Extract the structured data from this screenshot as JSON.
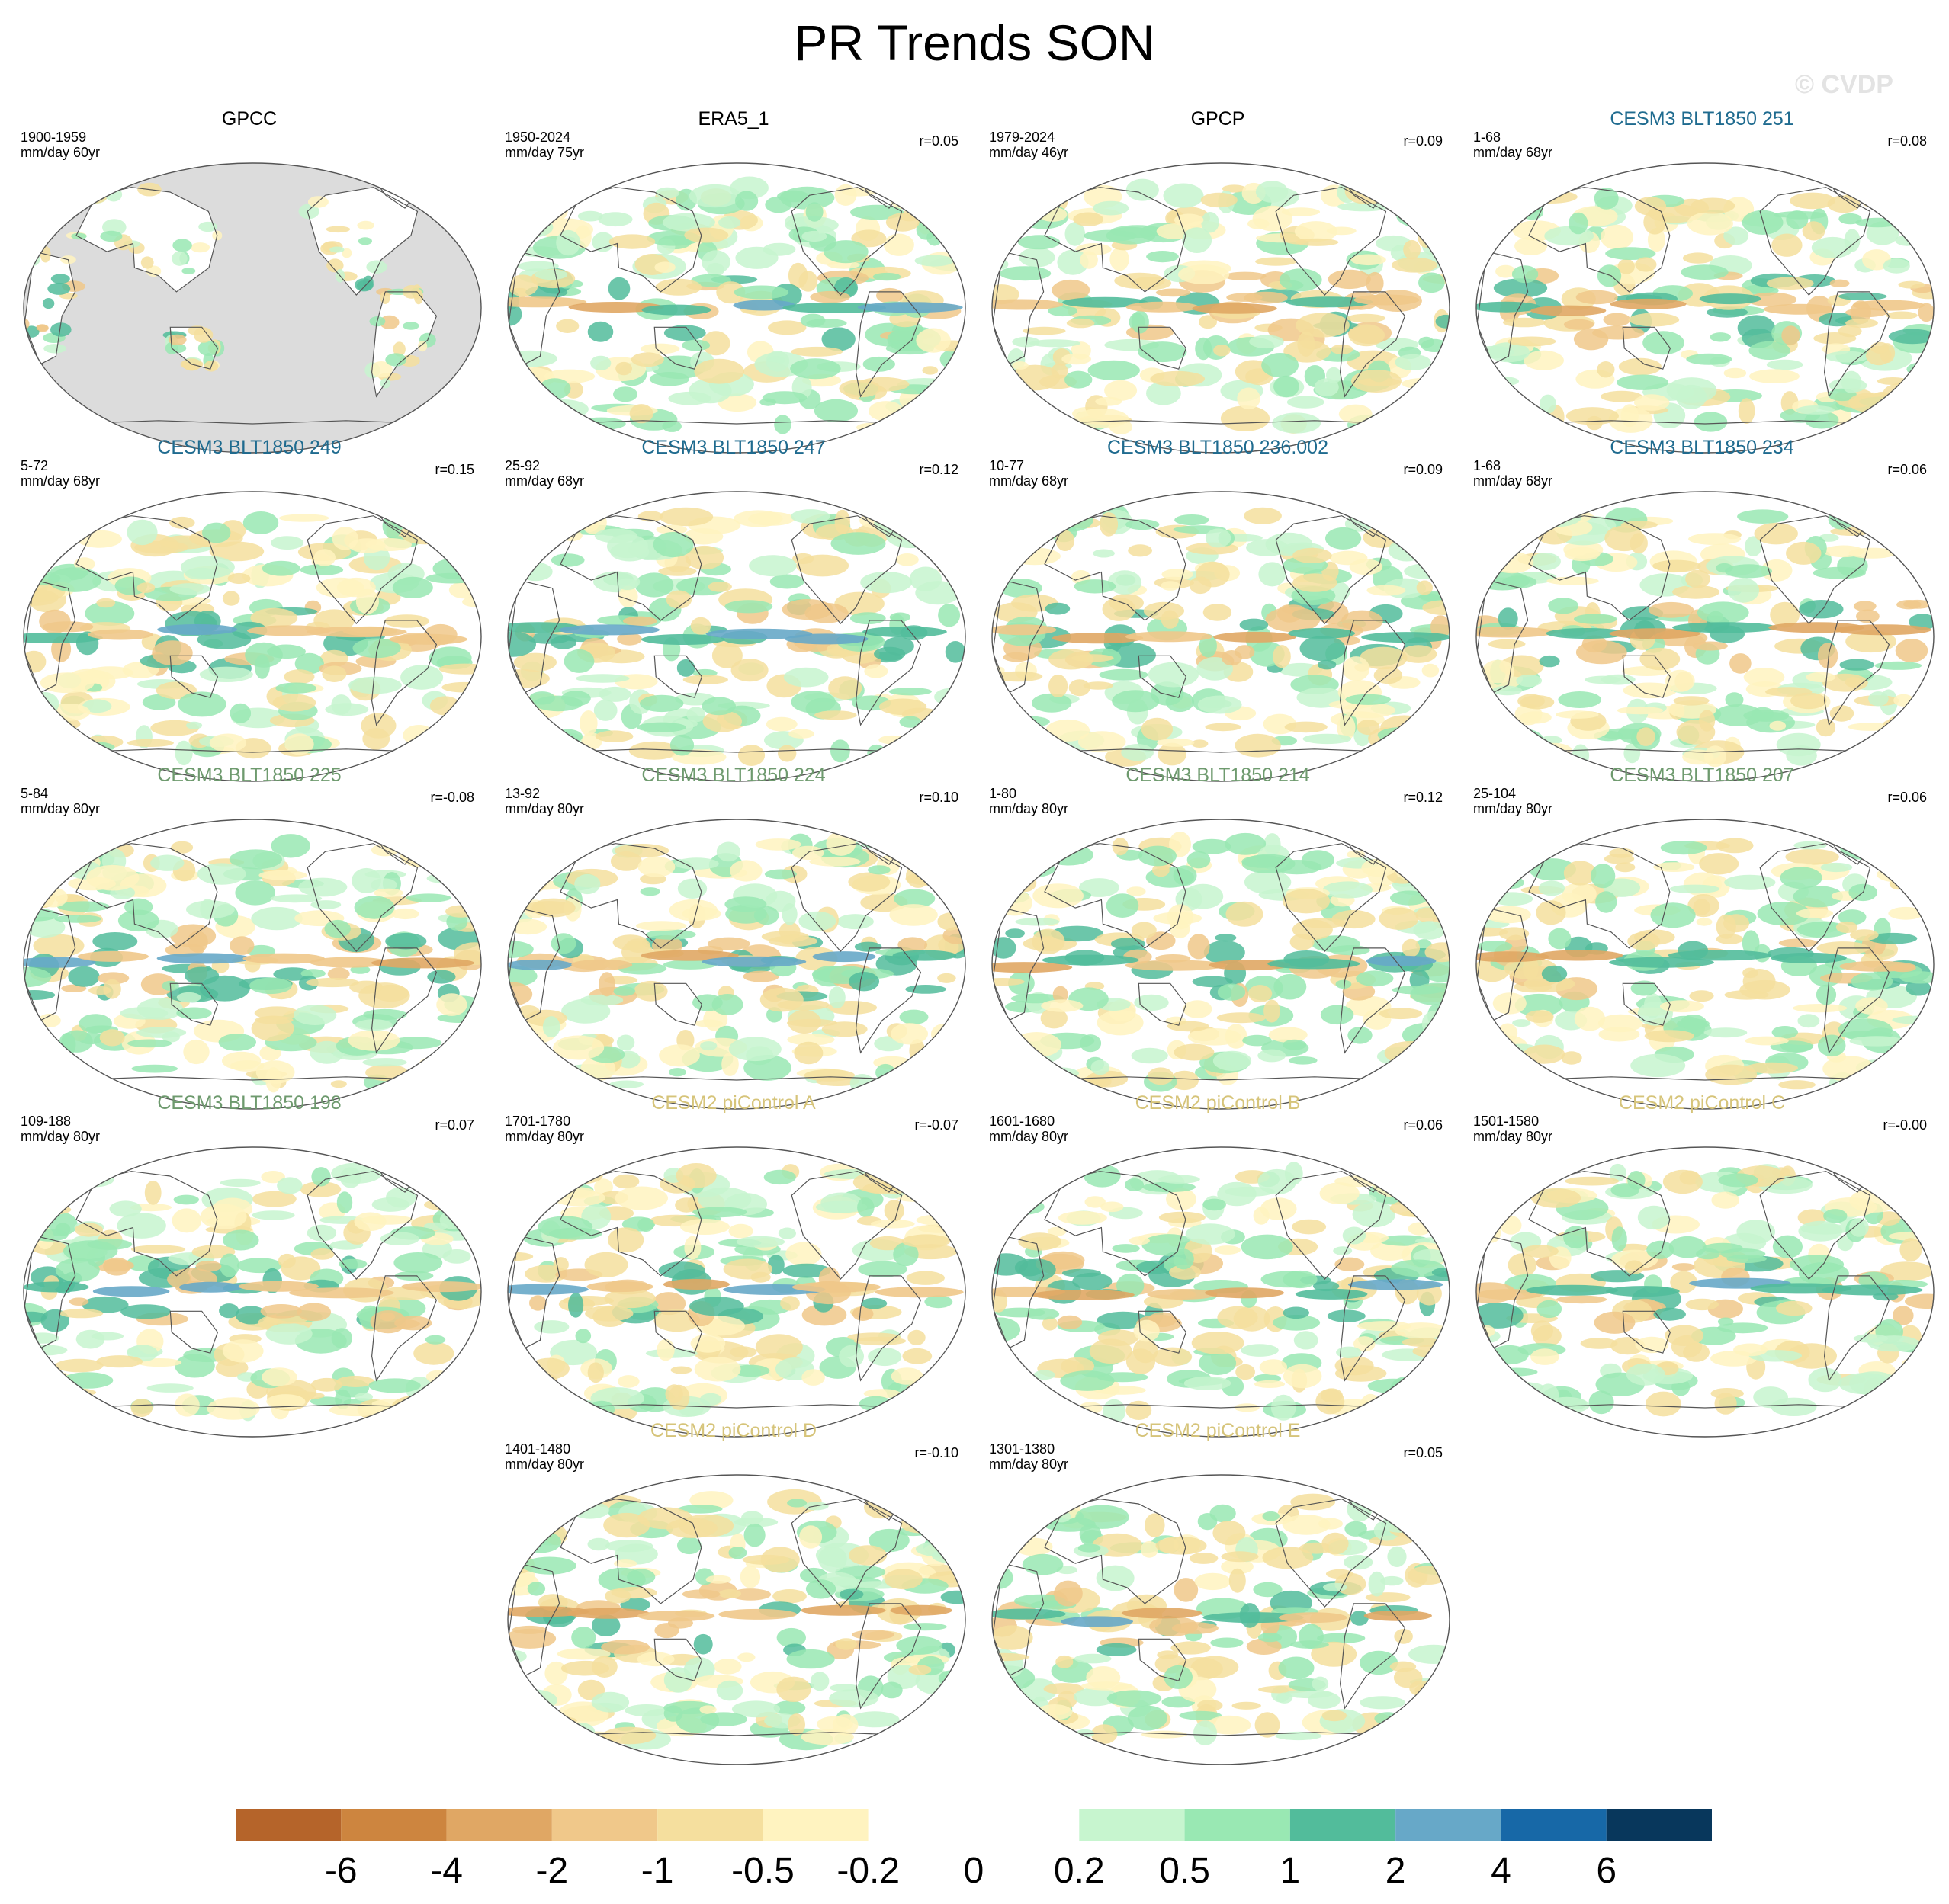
{
  "title": "PR Trends SON",
  "watermark": "© CVDP",
  "colors": {
    "land_fill": "#dcdcdc",
    "coast": "#555555",
    "title_obs": "#000000",
    "title_cesm3_a": "#1f6b8f",
    "title_cesm3_b": "#6e9a6e",
    "title_cesm2": "#d6c47a"
  },
  "chart_data": {
    "type": "heatmap",
    "variable": "PR Trends SON",
    "colorbar": {
      "colors": [
        "#b5642a",
        "#cd853f",
        "#e0a764",
        "#f0c88a",
        "#f5df9e",
        "#fff3c0",
        "#ffffff",
        "#ffffff",
        "#c7f5cf",
        "#99e8b3",
        "#52bc9b",
        "#67a8c8",
        "#1768a7",
        "#08375c"
      ],
      "tick_labels": [
        "-6",
        "-4",
        "-2",
        "-1",
        "-0.5",
        "-0.2",
        "0",
        "0.2",
        "0.5",
        "1",
        "2",
        "4",
        "6"
      ]
    },
    "panels": [
      {
        "title": "GPCC",
        "years": "1900-1959",
        "units": "mm/day 60yr",
        "r": "",
        "group": "obs",
        "land_only": true
      },
      {
        "title": "ERA5_1",
        "years": "1950-2024",
        "units": "mm/day 75yr",
        "r": "r=0.05",
        "group": "obs"
      },
      {
        "title": "GPCP",
        "years": "1979-2024",
        "units": "mm/day 46yr",
        "r": "r=0.09",
        "group": "obs"
      },
      {
        "title": "CESM3 BLT1850 251",
        "years": "1-68",
        "units": "mm/day 68yr",
        "r": "r=0.08",
        "group": "cesm3_a"
      },
      {
        "title": "CESM3 BLT1850 249",
        "years": "5-72",
        "units": "mm/day 68yr",
        "r": "r=0.15",
        "group": "cesm3_a"
      },
      {
        "title": "CESM3 BLT1850 247",
        "years": "25-92",
        "units": "mm/day 68yr",
        "r": "r=0.12",
        "group": "cesm3_a"
      },
      {
        "title": "CESM3 BLT1850 236.002",
        "years": "10-77",
        "units": "mm/day 68yr",
        "r": "r=0.09",
        "group": "cesm3_a"
      },
      {
        "title": "CESM3 BLT1850 234",
        "years": "1-68",
        "units": "mm/day 68yr",
        "r": "r=0.06",
        "group": "cesm3_a"
      },
      {
        "title": "CESM3 BLT1850 225",
        "years": "5-84",
        "units": "mm/day 80yr",
        "r": "r=-0.08",
        "group": "cesm3_b"
      },
      {
        "title": "CESM3 BLT1850 224",
        "years": "13-92",
        "units": "mm/day 80yr",
        "r": "r=0.10",
        "group": "cesm3_b"
      },
      {
        "title": "CESM3 BLT1850 214",
        "years": "1-80",
        "units": "mm/day 80yr",
        "r": "r=0.12",
        "group": "cesm3_b"
      },
      {
        "title": "CESM3 BLT1850 207",
        "years": "25-104",
        "units": "mm/day 80yr",
        "r": "r=0.06",
        "group": "cesm3_b"
      },
      {
        "title": "CESM3 BLT1850 198",
        "years": "109-188",
        "units": "mm/day 80yr",
        "r": "r=0.07",
        "group": "cesm3_b"
      },
      {
        "title": "CESM2 piControl A",
        "years": "1701-1780",
        "units": "mm/day 80yr",
        "r": "r=-0.07",
        "group": "cesm2"
      },
      {
        "title": "CESM2 piControl B",
        "years": "1601-1680",
        "units": "mm/day 80yr",
        "r": "r=0.06",
        "group": "cesm2"
      },
      {
        "title": "CESM2 piControl C",
        "years": "1501-1580",
        "units": "mm/day 80yr",
        "r": "r=-0.00",
        "group": "cesm2"
      },
      {
        "title": "CESM2 piControl D",
        "years": "1401-1480",
        "units": "mm/day 80yr",
        "r": "r=-0.10",
        "group": "cesm2"
      },
      {
        "title": "CESM2 piControl E",
        "years": "1301-1380",
        "units": "mm/day 80yr",
        "r": "r=0.05",
        "group": "cesm2"
      }
    ]
  }
}
